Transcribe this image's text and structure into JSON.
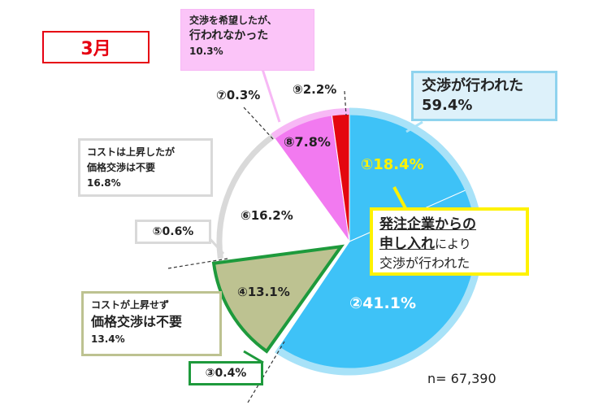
{
  "month_label": "3月",
  "n_label": "n= 67,390",
  "colors": {
    "blue": "#3EC2F7",
    "blue_light": "#A8E2F8",
    "green": "#BDC291",
    "green_border": "#1E9A3C",
    "white": "#FFFFFF",
    "gray_border": "#D9D9D9",
    "magenta": "#F27AF0",
    "magenta_border": "#F7B8F5",
    "red": "#E4070F",
    "yellow": "#FFF200"
  },
  "chart_data": {
    "type": "pie",
    "n": 67390,
    "slices": [
      {
        "id": "1",
        "label": "①18.4%",
        "value": 18.4
      },
      {
        "id": "2",
        "label": "②41.1%",
        "value": 41.1
      },
      {
        "id": "3",
        "label": "③0.4%",
        "value": 0.4
      },
      {
        "id": "4",
        "label": "④13.1%",
        "value": 13.1
      },
      {
        "id": "5",
        "label": "⑤0.6%",
        "value": 0.6
      },
      {
        "id": "6",
        "label": "⑥16.2%",
        "value": 16.2
      },
      {
        "id": "7",
        "label": "⑦0.3%",
        "value": 0.3
      },
      {
        "id": "8",
        "label": "⑧7.8%",
        "value": 7.8
      },
      {
        "id": "9",
        "label": "⑨2.2%",
        "value": 2.2
      }
    ],
    "groups": [
      {
        "line1": "交渉が行われた",
        "line2": "59.4%"
      },
      {
        "line1": "コストが上昇せず",
        "line2": "価格交渉は不要",
        "line3": "13.4%"
      },
      {
        "line1": "コストは上昇したが",
        "line2": "価格交渉は不要",
        "line3": "16.8%"
      },
      {
        "line1": "交渉を希望したが、",
        "line2": "行われなかった",
        "line3": "10.3%"
      }
    ],
    "callout": {
      "part1": "発注企業からの",
      "part2": "申し入れ",
      "part3": "により",
      "part4": "交渉が行われた"
    }
  }
}
